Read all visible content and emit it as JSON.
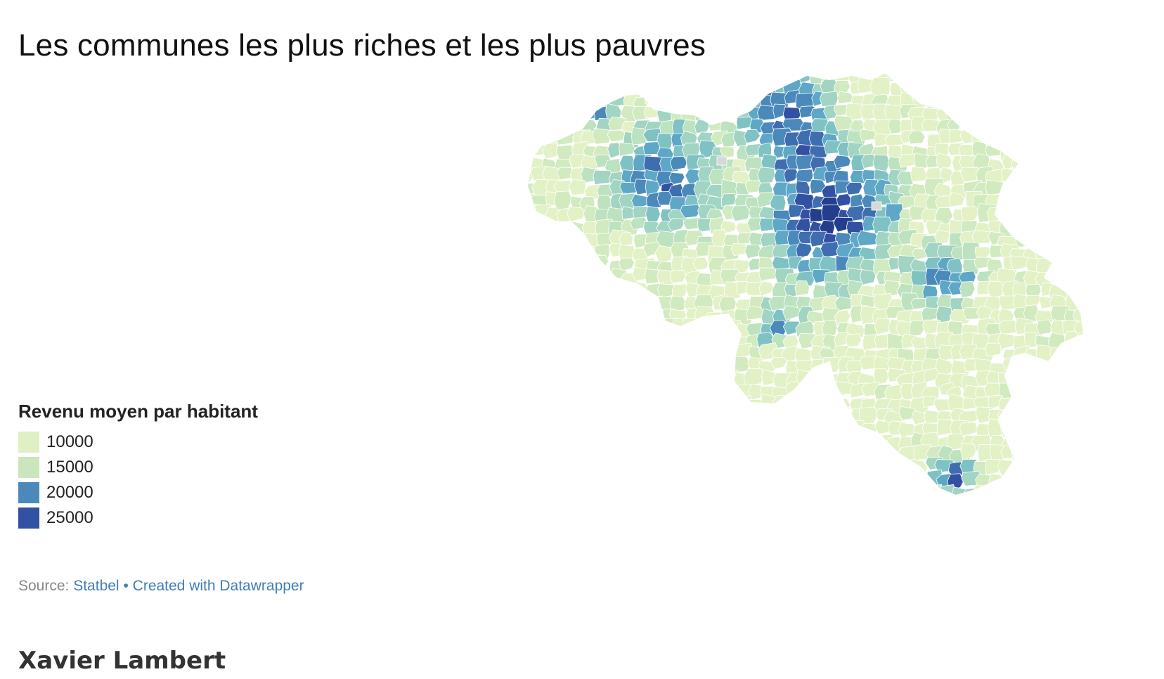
{
  "title": "Les communes les plus riches et les plus pauvres",
  "legend": {
    "title": "Revenu moyen par habitant",
    "items": [
      {
        "label": "10000",
        "color": "#e0f0c3"
      },
      {
        "label": "15000",
        "color": "#c9e6bd"
      },
      {
        "label": "20000",
        "color": "#4b89ba"
      },
      {
        "label": "25000",
        "color": "#3351a3"
      }
    ]
  },
  "footer": {
    "source_prefix": "Source:",
    "source_link": "Statbel",
    "separator": "•",
    "created_link": "Created with Datawrapper"
  },
  "author": "Xavier Lambert",
  "map": {
    "region": "Belgium",
    "missing_color": "#d8d8d8",
    "palette": [
      "#e3f1c6",
      "#d2eac0",
      "#bce2bf",
      "#a1d4c2",
      "#7fc2c4",
      "#5fa7c6",
      "#4b89ba",
      "#3f6eb0",
      "#3351a3",
      "#243e8e"
    ]
  }
}
